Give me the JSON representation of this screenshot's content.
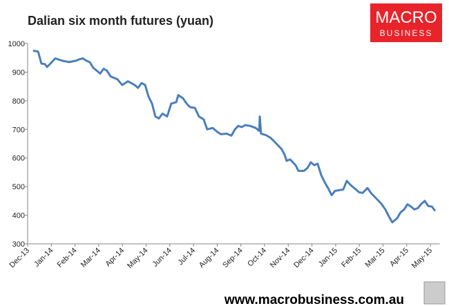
{
  "chart_data": {
    "type": "line",
    "title": "Dalian six month futures (yuan)",
    "x": [
      0.23,
      0.44,
      0.5,
      0.58,
      0.73,
      0.82,
      1.02,
      1.17,
      1.46,
      1.75,
      2.04,
      2.19,
      2.33,
      2.48,
      2.62,
      2.77,
      2.92,
      3.06,
      3.21,
      3.35,
      3.5,
      3.79,
      3.99,
      4.23,
      4.52,
      4.66,
      4.81,
      4.96,
      5.1,
      5.25,
      5.39,
      5.54,
      5.69,
      5.89,
      6.06,
      6.27,
      6.36,
      6.56,
      6.71,
      6.85,
      7.06,
      7.23,
      7.43,
      7.58,
      7.81,
      8.02,
      8.16,
      8.4,
      8.6,
      8.75,
      8.89,
      9.04,
      9.18,
      9.39,
      9.62,
      9.77,
      9.8,
      9.85,
      10.06,
      10.26,
      10.5,
      10.73,
      10.85,
      10.93,
      11.08,
      11.31,
      11.43,
      11.66,
      11.81,
      11.95,
      12.1,
      12.24,
      12.39,
      12.54,
      12.68,
      12.83,
      12.97,
      13.12,
      13.32,
      13.47,
      13.64,
      13.85,
      13.99,
      14.14,
      14.34,
      14.52,
      14.72,
      14.93,
      15.1,
      15.25,
      15.39,
      15.6,
      15.74,
      15.89,
      16.03,
      16.18,
      16.33,
      16.47,
      16.62,
      16.76,
      16.91,
      17.06,
      17.2
    ],
    "series": [
      {
        "color": "#4a7ebb",
        "values": [
          975,
          972,
          955,
          930,
          928,
          918,
          935,
          948,
          940,
          935,
          940,
          945,
          948,
          940,
          935,
          915,
          905,
          895,
          912,
          905,
          885,
          875,
          855,
          868,
          855,
          845,
          862,
          855,
          815,
          790,
          745,
          738,
          755,
          745,
          790,
          795,
          820,
          808,
          790,
          778,
          775,
          745,
          735,
          700,
          705,
          690,
          683,
          685,
          678,
          700,
          712,
          708,
          715,
          712,
          705,
          695,
          745,
          685,
          680,
          670,
          650,
          630,
          610,
          590,
          595,
          575,
          555,
          555,
          565,
          585,
          575,
          580,
          540,
          515,
          495,
          470,
          485,
          487,
          490,
          520,
          505,
          490,
          480,
          478,
          495,
          475,
          458,
          440,
          420,
          395,
          375,
          390,
          410,
          420,
          438,
          430,
          420,
          425,
          440,
          450,
          432,
          430,
          415
        ]
      }
    ],
    "xlim": [
      0,
      17.4
    ],
    "xticks": [
      {
        "value": 0,
        "label": "Dec-13"
      },
      {
        "value": 1,
        "label": "Jan-14"
      },
      {
        "value": 2,
        "label": "Feb-14"
      },
      {
        "value": 3,
        "label": "Mar-14"
      },
      {
        "value": 4,
        "label": "Apr-14"
      },
      {
        "value": 5,
        "label": "May-14"
      },
      {
        "value": 6,
        "label": "Jun-14"
      },
      {
        "value": 7,
        "label": "Jul-14"
      },
      {
        "value": 8,
        "label": "Aug-14"
      },
      {
        "value": 9,
        "label": "Sep-14"
      },
      {
        "value": 10,
        "label": "Oct-14"
      },
      {
        "value": 11,
        "label": "Nov-14"
      },
      {
        "value": 12,
        "label": "Dec-14"
      },
      {
        "value": 13,
        "label": "Jan-15"
      },
      {
        "value": 14,
        "label": "Feb-15"
      },
      {
        "value": 15,
        "label": "Mar-15"
      },
      {
        "value": 16,
        "label": "Apr-15"
      },
      {
        "value": 17,
        "label": "May-15"
      }
    ],
    "ylim": [
      300,
      1000
    ],
    "yticks": [
      300,
      400,
      500,
      600,
      700,
      800,
      900,
      1000
    ],
    "grid": false
  },
  "logo": {
    "line1": "MACRO",
    "line2": "BUSINESS"
  },
  "footer": "www.macrobusiness.com.au"
}
